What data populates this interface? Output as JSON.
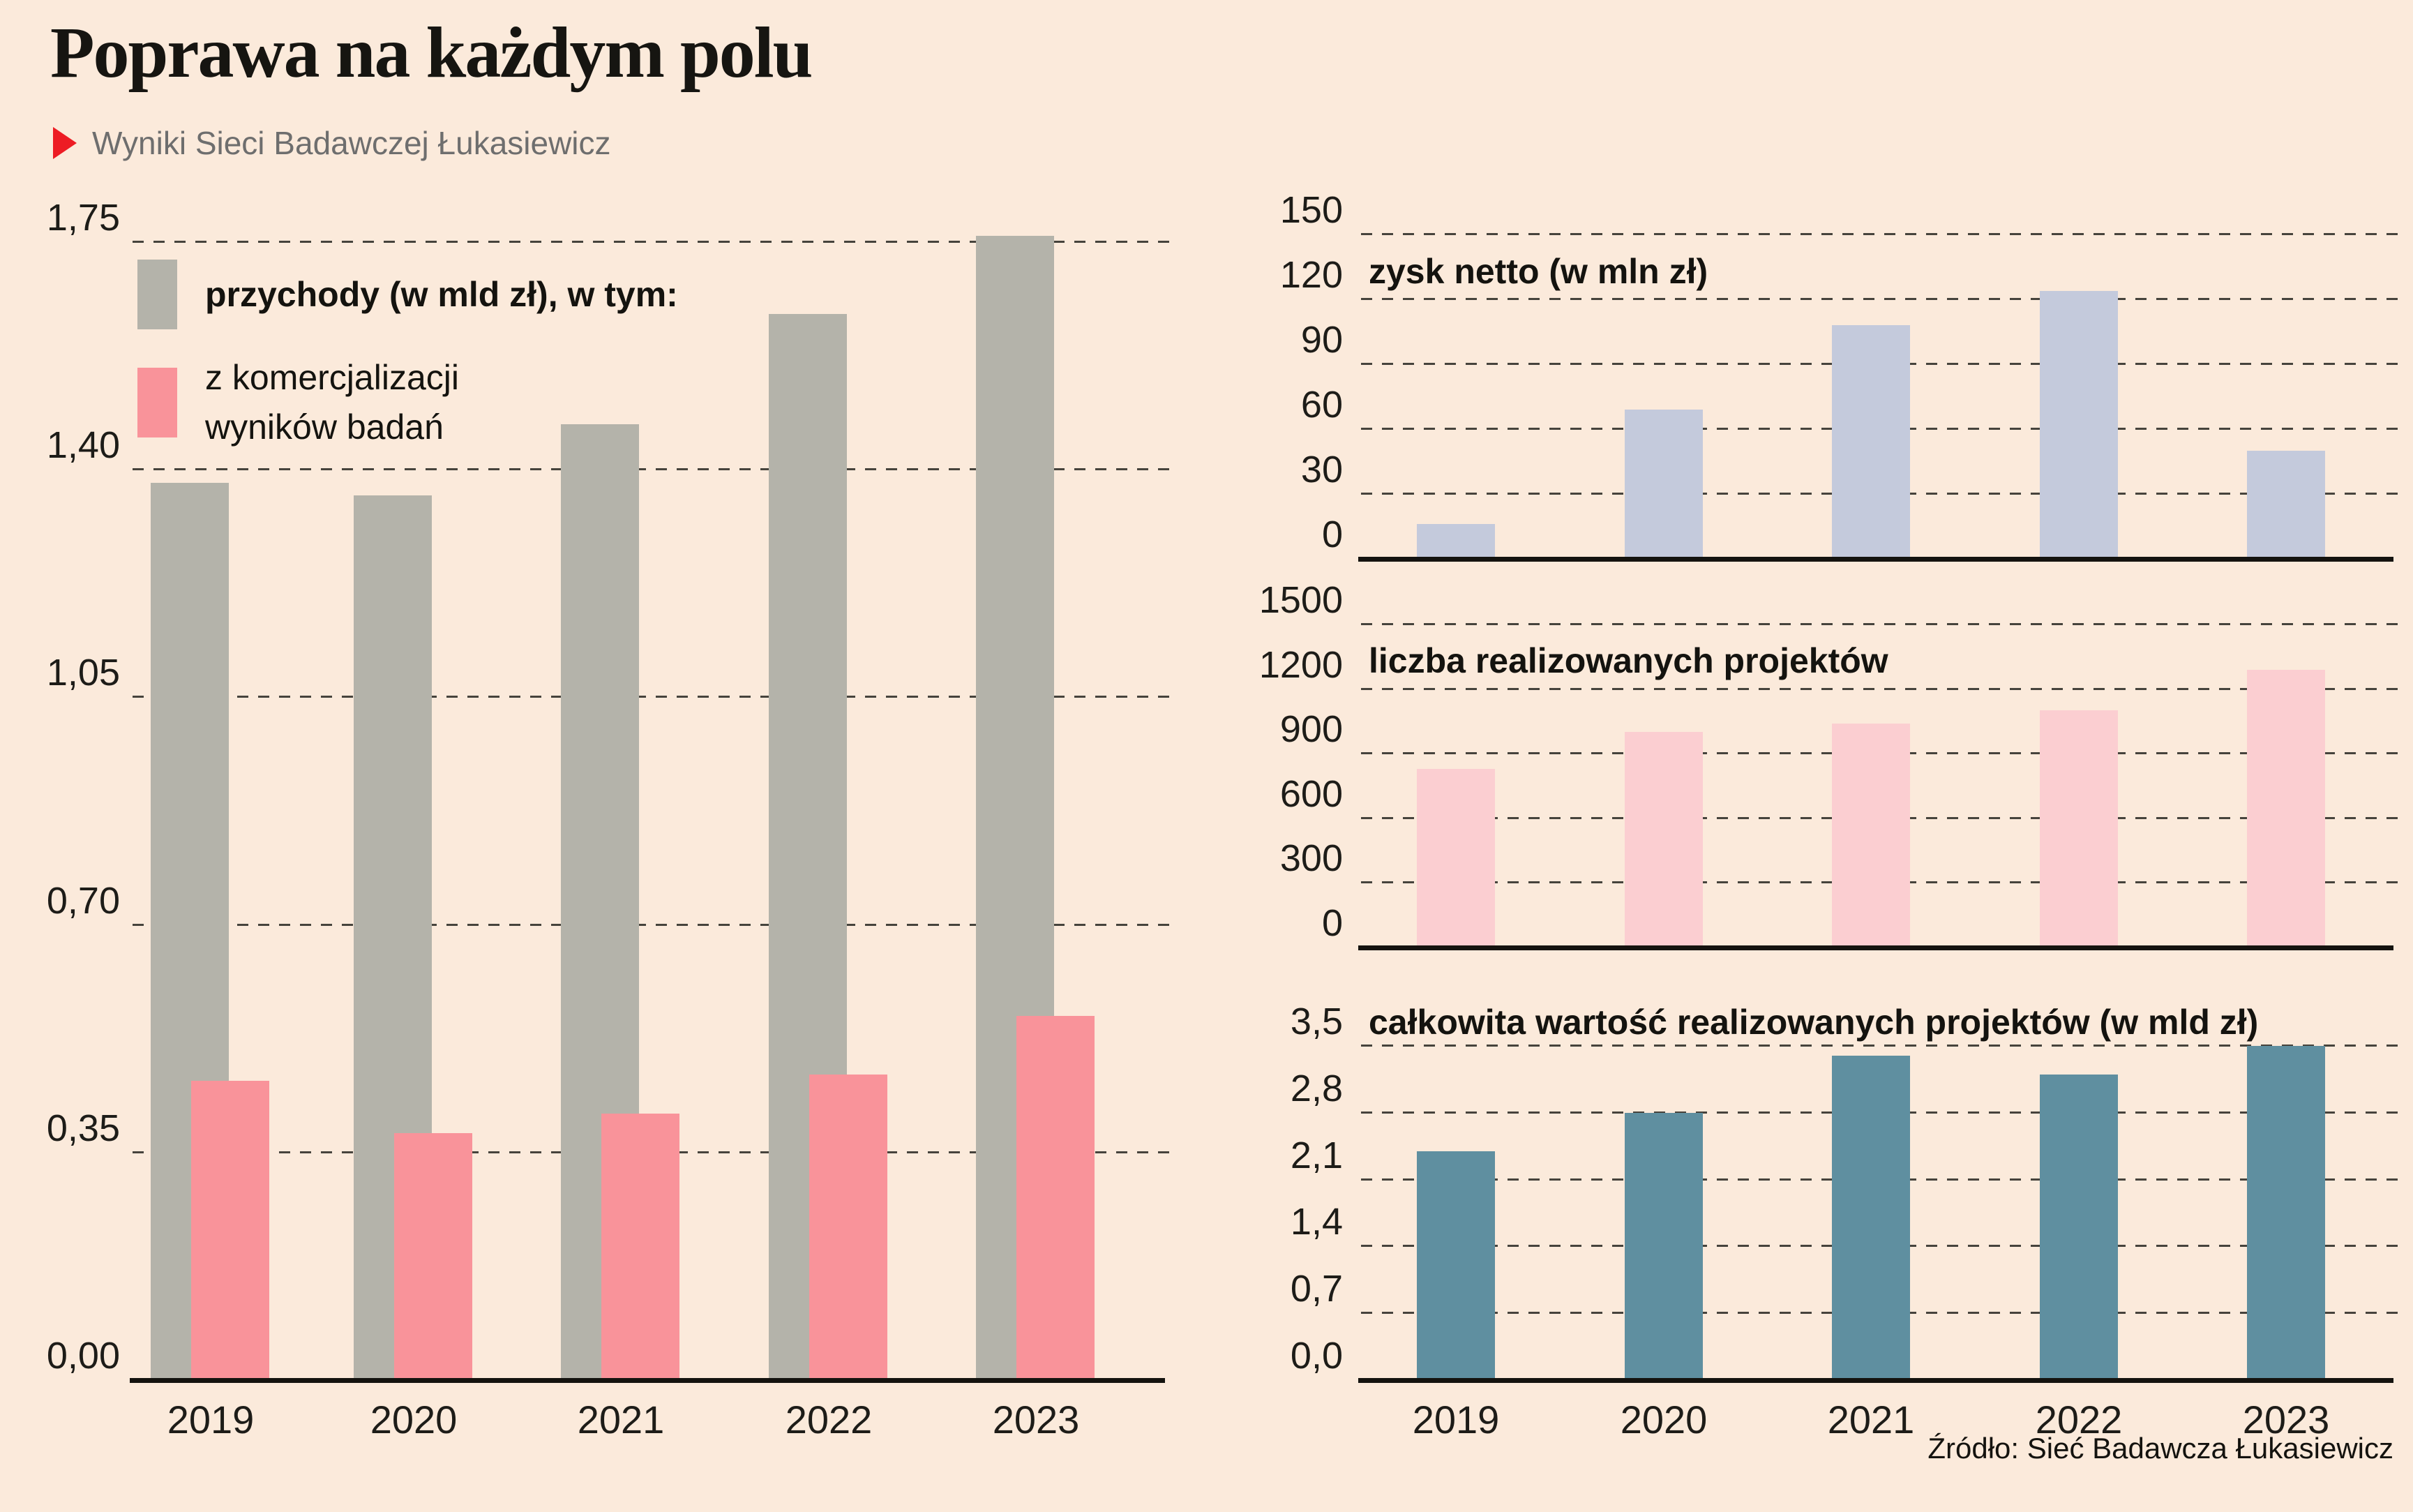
{
  "header": {
    "title": "Poprawa na każdym polu",
    "subtitle": "Wyniki Sieci Badawczej Łukasiewicz"
  },
  "source": "Źródło: Sieć Badawcza Łukasiewicz",
  "colors": {
    "background": "#fbeadb",
    "accent_red": "#ed1c24",
    "text": "#14130f",
    "subtitle_gray": "#6e6e6e",
    "gridline": "#46433c",
    "axis": "#14130f",
    "bar_gray": "#b4b3aa",
    "bar_salmon": "#f9939a",
    "bar_lavender": "#c4cadc",
    "bar_pale_pink": "#fbced1",
    "bar_teal": "#5f8fa0"
  },
  "chart_data": [
    {
      "id": "revenue",
      "type": "bar",
      "title": "",
      "legend": [
        {
          "label": "przychody (w mld zł), w tym:",
          "color": "#b4b3aa"
        },
        {
          "label": "z komercjalizacji wyników badań",
          "color": "#f9939a"
        }
      ],
      "categories": [
        "2019",
        "2020",
        "2021",
        "2022",
        "2023"
      ],
      "series": [
        {
          "name": "przychody (w mld zł)",
          "color": "#b4b3aa",
          "values": [
            1.38,
            1.36,
            1.47,
            1.64,
            1.76
          ]
        },
        {
          "name": "z komercjalizacji wyników badań",
          "color": "#f9939a",
          "values": [
            0.46,
            0.38,
            0.41,
            0.47,
            0.56
          ]
        }
      ],
      "ylim": [
        0,
        1.75
      ],
      "yticks": [
        {
          "v": 1.75,
          "label": "1,75"
        },
        {
          "v": 1.4,
          "label": "1,40"
        },
        {
          "v": 1.05,
          "label": "1,05"
        },
        {
          "v": 0.7,
          "label": "0,70"
        },
        {
          "v": 0.35,
          "label": "0,35"
        },
        {
          "v": 0,
          "label": "0,00"
        }
      ],
      "grid": "dashed-horizontal",
      "legend_position": "top-left-inside",
      "show_xlabels": true
    },
    {
      "id": "net",
      "type": "bar",
      "title": "zysk netto (w mln zł)",
      "categories": [
        "2019",
        "2020",
        "2021",
        "2022",
        "2023"
      ],
      "series": [
        {
          "name": "zysk netto (w mln zł)",
          "color": "#c4cadc",
          "values": [
            16,
            69,
            108,
            124,
            50
          ]
        }
      ],
      "ylim": [
        0,
        150
      ],
      "yticks": [
        {
          "v": 150,
          "label": "150"
        },
        {
          "v": 120,
          "label": "120"
        },
        {
          "v": 90,
          "label": "90"
        },
        {
          "v": 60,
          "label": "60"
        },
        {
          "v": 30,
          "label": "30"
        },
        {
          "v": 0,
          "label": "0"
        }
      ],
      "grid": "dashed-horizontal",
      "show_xlabels": false
    },
    {
      "id": "count",
      "type": "bar",
      "title": "liczba realizowanych projektów",
      "categories": [
        "2019",
        "2020",
        "2021",
        "2022",
        "2023"
      ],
      "series": [
        {
          "name": "liczba realizowanych projektów",
          "color": "#fbced1",
          "values": [
            830,
            1000,
            1040,
            1100,
            1290
          ]
        }
      ],
      "ylim": [
        0,
        1500
      ],
      "yticks": [
        {
          "v": 1500,
          "label": "1500"
        },
        {
          "v": 1200,
          "label": "1200"
        },
        {
          "v": 900,
          "label": "900"
        },
        {
          "v": 600,
          "label": "600"
        },
        {
          "v": 300,
          "label": "300"
        },
        {
          "v": 0,
          "label": "0"
        }
      ],
      "grid": "dashed-horizontal",
      "show_xlabels": false
    },
    {
      "id": "value",
      "type": "bar",
      "title": "całkowita wartość realizowanych projektów (w mld zł)",
      "categories": [
        "2019",
        "2020",
        "2021",
        "2022",
        "2023"
      ],
      "series": [
        {
          "name": "całkowita wartość realizowanych projektów (w mld zł)",
          "color": "#5f8fa0",
          "values": [
            2.4,
            2.8,
            3.4,
            3.2,
            3.5
          ]
        }
      ],
      "ylim": [
        0,
        3.5
      ],
      "yticks": [
        {
          "v": 3.5,
          "label": "3,5"
        },
        {
          "v": 2.8,
          "label": "2,8"
        },
        {
          "v": 2.1,
          "label": "2,1"
        },
        {
          "v": 1.4,
          "label": "1,4"
        },
        {
          "v": 0.7,
          "label": "0,7"
        },
        {
          "v": 0,
          "label": "0,0"
        }
      ],
      "grid": "dashed-horizontal",
      "show_xlabels": true
    }
  ]
}
